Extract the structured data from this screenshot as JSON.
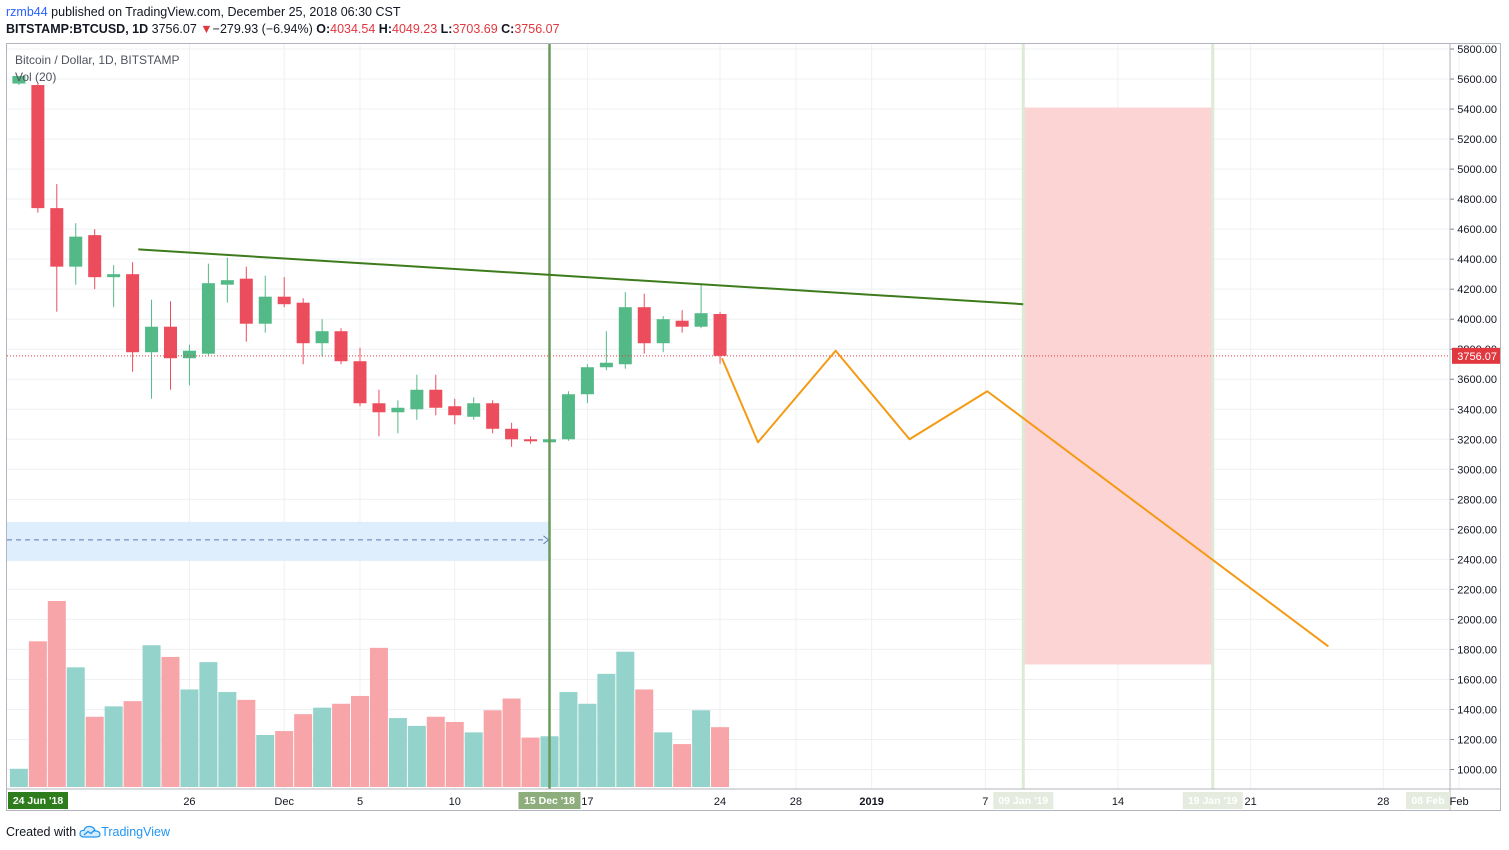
{
  "header": {
    "user": "rzmb44",
    "published": "published on TradingView.com, December 25, 2018 06:30 CST",
    "symbol": "BITSTAMP:BTCUSD, 1D",
    "last": "3756.07",
    "change_arrow": "▼",
    "change": "−279.93 (−6.94%)",
    "o_label": "O:",
    "o_value": "4034.54",
    "h_label": "H:",
    "h_value": "4049.23",
    "l_label": "L:",
    "l_value": "3703.69",
    "c_label": "C:",
    "c_value": "3756.07"
  },
  "legend": {
    "series": "Bitcoin / Dollar, 1D, BITSTAMP",
    "volume": "Vol (20)"
  },
  "footer": {
    "created_with": "Created with",
    "brand": "TradingView"
  },
  "colors": {
    "up": "#53b987",
    "down": "#eb4d5c",
    "up_vol": "#93d3cb",
    "down_vol": "#f7a5a8",
    "trendline": "#3e7b1c",
    "projection": "#f59a13",
    "zone": "#fcd4d4",
    "range": "#deeefc"
  },
  "chart_data": {
    "type": "candlestick",
    "title": "Bitcoin / Dollar, 1D, BITSTAMP",
    "ylim": [
      850,
      5850
    ],
    "y_ticks": [
      "5800.00",
      "5600.00",
      "5400.00",
      "5200.00",
      "5000.00",
      "4800.00",
      "4600.00",
      "4400.00",
      "4200.00",
      "4000.00",
      "3800.00",
      "3600.00",
      "3400.00",
      "3200.00",
      "3000.00",
      "2800.00",
      "2600.00",
      "2400.00",
      "2200.00",
      "2000.00",
      "1800.00",
      "1600.00",
      "1400.00",
      "1200.00",
      "1000.00"
    ],
    "x_ticks": [
      {
        "label": "26",
        "day": 3
      },
      {
        "label": "Dec",
        "day": 8
      },
      {
        "label": "5",
        "day": 12
      },
      {
        "label": "10",
        "day": 17
      },
      {
        "label": "17",
        "day": 24
      },
      {
        "label": "24",
        "day": 31
      },
      {
        "label": "28",
        "day": 35
      },
      {
        "label": "2019",
        "day": 39
      },
      {
        "label": "7",
        "day": 45
      },
      {
        "label": "14",
        "day": 52
      },
      {
        "label": "21",
        "day": 59
      },
      {
        "label": "28",
        "day": 66
      },
      {
        "label": "Feb",
        "day": 70
      }
    ],
    "x_highlight": [
      {
        "label": "24 Jun '18",
        "day": -6.1,
        "style": "dark"
      },
      {
        "label": "15 Dec '18",
        "day": 22,
        "style": "green"
      },
      {
        "label": "09 Jan '19",
        "day": 47,
        "style": "faded"
      },
      {
        "label": "19 Jan '19",
        "day": 57,
        "style": "faded"
      },
      {
        "label": "08 Feb",
        "day": 69.5,
        "style": "faded"
      }
    ],
    "last_price": {
      "label": "3756.07",
      "value": 3756.07
    },
    "candles": [
      {
        "d": -6,
        "o": 5570,
        "h": 5620,
        "l": 5560,
        "c": 5620
      },
      {
        "d": -5,
        "o": 5560,
        "h": 5570,
        "l": 4710,
        "c": 4740
      },
      {
        "d": -4,
        "o": 4740,
        "h": 4900,
        "l": 4050,
        "c": 4350
      },
      {
        "d": -3,
        "o": 4350,
        "h": 4640,
        "l": 4230,
        "c": 4550
      },
      {
        "d": -2,
        "o": 4560,
        "h": 4600,
        "l": 4200,
        "c": 4280
      },
      {
        "d": -1,
        "o": 4280,
        "h": 4360,
        "l": 4080,
        "c": 4300
      },
      {
        "d": 0,
        "o": 4300,
        "h": 4380,
        "l": 3650,
        "c": 3780
      },
      {
        "d": 1,
        "o": 3780,
        "h": 4130,
        "l": 3470,
        "c": 3950
      },
      {
        "d": 2,
        "o": 3950,
        "h": 4120,
        "l": 3530,
        "c": 3740
      },
      {
        "d": 3,
        "o": 3740,
        "h": 3830,
        "l": 3560,
        "c": 3790
      },
      {
        "d": 4,
        "o": 3770,
        "h": 4370,
        "l": 3760,
        "c": 4240
      },
      {
        "d": 5,
        "o": 4230,
        "h": 4410,
        "l": 4110,
        "c": 4260
      },
      {
        "d": 6,
        "o": 4270,
        "h": 4350,
        "l": 3850,
        "c": 3970
      },
      {
        "d": 7,
        "o": 3970,
        "h": 4290,
        "l": 3910,
        "c": 4150
      },
      {
        "d": 8,
        "o": 4150,
        "h": 4280,
        "l": 4080,
        "c": 4100
      },
      {
        "d": 9,
        "o": 4110,
        "h": 4140,
        "l": 3700,
        "c": 3840
      },
      {
        "d": 10,
        "o": 3840,
        "h": 4000,
        "l": 3750,
        "c": 3920
      },
      {
        "d": 11,
        "o": 3920,
        "h": 3940,
        "l": 3700,
        "c": 3720
      },
      {
        "d": 12,
        "o": 3720,
        "h": 3810,
        "l": 3420,
        "c": 3440
      },
      {
        "d": 13,
        "o": 3440,
        "h": 3530,
        "l": 3220,
        "c": 3380
      },
      {
        "d": 14,
        "o": 3380,
        "h": 3460,
        "l": 3240,
        "c": 3410
      },
      {
        "d": 15,
        "o": 3400,
        "h": 3630,
        "l": 3330,
        "c": 3530
      },
      {
        "d": 16,
        "o": 3530,
        "h": 3630,
        "l": 3360,
        "c": 3410
      },
      {
        "d": 17,
        "o": 3420,
        "h": 3470,
        "l": 3300,
        "c": 3360
      },
      {
        "d": 18,
        "o": 3350,
        "h": 3480,
        "l": 3330,
        "c": 3440
      },
      {
        "d": 19,
        "o": 3440,
        "h": 3460,
        "l": 3240,
        "c": 3270
      },
      {
        "d": 20,
        "o": 3270,
        "h": 3310,
        "l": 3150,
        "c": 3200
      },
      {
        "d": 21,
        "o": 3200,
        "h": 3220,
        "l": 3170,
        "c": 3190
      },
      {
        "d": 22,
        "o": 3180,
        "h": 3270,
        "l": 3170,
        "c": 3200
      },
      {
        "d": 23,
        "o": 3200,
        "h": 3520,
        "l": 3190,
        "c": 3500
      },
      {
        "d": 24,
        "o": 3500,
        "h": 3700,
        "l": 3440,
        "c": 3680
      },
      {
        "d": 25,
        "o": 3680,
        "h": 3920,
        "l": 3660,
        "c": 3710
      },
      {
        "d": 26,
        "o": 3700,
        "h": 4180,
        "l": 3670,
        "c": 4080
      },
      {
        "d": 27,
        "o": 4080,
        "h": 4170,
        "l": 3770,
        "c": 3840
      },
      {
        "d": 28,
        "o": 3840,
        "h": 4020,
        "l": 3780,
        "c": 4000
      },
      {
        "d": 29,
        "o": 3990,
        "h": 4060,
        "l": 3910,
        "c": 3950
      },
      {
        "d": 30,
        "o": 3950,
        "h": 4240,
        "l": 3940,
        "c": 4040
      },
      {
        "d": 31,
        "o": 4034.54,
        "h": 4049.23,
        "l": 3703.69,
        "c": 3756.07
      }
    ],
    "volume": [
      {
        "d": -6,
        "v": 140,
        "up": true
      },
      {
        "d": -5,
        "v": 1120,
        "up": false
      },
      {
        "d": -4,
        "v": 1430,
        "up": false
      },
      {
        "d": -3,
        "v": 920,
        "up": true
      },
      {
        "d": -2,
        "v": 540,
        "up": false
      },
      {
        "d": -1,
        "v": 620,
        "up": true
      },
      {
        "d": 0,
        "v": 660,
        "up": false
      },
      {
        "d": 1,
        "v": 1090,
        "up": true
      },
      {
        "d": 2,
        "v": 1000,
        "up": false
      },
      {
        "d": 3,
        "v": 750,
        "up": true
      },
      {
        "d": 4,
        "v": 960,
        "up": true
      },
      {
        "d": 5,
        "v": 730,
        "up": true
      },
      {
        "d": 6,
        "v": 670,
        "up": false
      },
      {
        "d": 7,
        "v": 400,
        "up": true
      },
      {
        "d": 8,
        "v": 430,
        "up": false
      },
      {
        "d": 9,
        "v": 560,
        "up": false
      },
      {
        "d": 10,
        "v": 610,
        "up": true
      },
      {
        "d": 11,
        "v": 640,
        "up": false
      },
      {
        "d": 12,
        "v": 700,
        "up": false
      },
      {
        "d": 13,
        "v": 1070,
        "up": false
      },
      {
        "d": 14,
        "v": 530,
        "up": true
      },
      {
        "d": 15,
        "v": 470,
        "up": true
      },
      {
        "d": 16,
        "v": 540,
        "up": false
      },
      {
        "d": 17,
        "v": 500,
        "up": false
      },
      {
        "d": 18,
        "v": 420,
        "up": true
      },
      {
        "d": 19,
        "v": 590,
        "up": false
      },
      {
        "d": 20,
        "v": 680,
        "up": false
      },
      {
        "d": 21,
        "v": 380,
        "up": false
      },
      {
        "d": 22,
        "v": 390,
        "up": true
      },
      {
        "d": 23,
        "v": 730,
        "up": true
      },
      {
        "d": 24,
        "v": 640,
        "up": true
      },
      {
        "d": 25,
        "v": 870,
        "up": true
      },
      {
        "d": 26,
        "v": 1040,
        "up": true
      },
      {
        "d": 27,
        "v": 750,
        "up": false
      },
      {
        "d": 28,
        "v": 420,
        "up": true
      },
      {
        "d": 29,
        "v": 330,
        "up": false
      },
      {
        "d": 30,
        "v": 590,
        "up": true
      },
      {
        "d": 31,
        "v": 460,
        "up": false
      }
    ],
    "volume_max": 1430,
    "drawings": {
      "trendline": {
        "from": {
          "d": 0.3,
          "p": 4465
        },
        "to": {
          "d": 47,
          "p": 4100
        }
      },
      "vertical_marker": {
        "d": 22
      },
      "price_range": {
        "from_d": -7,
        "to_d": 22,
        "low": 2390,
        "high": 2650,
        "mid": 2530
      },
      "short_zone": {
        "from_d": 47,
        "to_d": 57,
        "low": 1700,
        "high": 5410
      },
      "projection": [
        {
          "d": 31.1,
          "p": 3740
        },
        {
          "d": 33,
          "p": 3180
        },
        {
          "d": 37.1,
          "p": 3790
        },
        {
          "d": 41,
          "p": 3200
        },
        {
          "d": 45.1,
          "p": 3520
        },
        {
          "d": 63.1,
          "p": 1820
        }
      ]
    }
  }
}
